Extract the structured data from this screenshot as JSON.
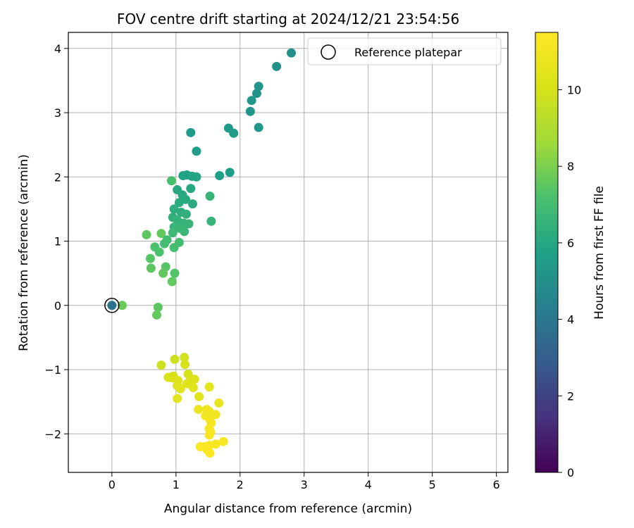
{
  "chart_data": {
    "type": "scatter",
    "title": "FOV centre drift starting at 2024/12/21 23:54:56",
    "xlabel": "Angular distance from reference (arcmin)",
    "ylabel": "Rotation from reference (arcmin)",
    "xlim": [
      -0.68,
      6.18
    ],
    "ylim": [
      -2.6,
      4.25
    ],
    "xticks": [
      0,
      1,
      2,
      3,
      4,
      5,
      6
    ],
    "yticks": [
      -2,
      -1,
      0,
      1,
      2,
      3,
      4
    ],
    "grid": true,
    "legend": {
      "placement": "top-right",
      "entries": [
        "Reference platepar"
      ]
    },
    "colorbar": {
      "label": "Hours from first FF file",
      "min": 0,
      "max": 11.5,
      "ticks": [
        0,
        2,
        4,
        6,
        8,
        10
      ],
      "colormap": "viridis"
    },
    "reference_point": {
      "x": 0,
      "y": 0
    },
    "points": [
      {
        "x": 0,
        "y": 0,
        "c": 3.8
      },
      {
        "x": 2.8,
        "y": 3.93,
        "c": 5.0
      },
      {
        "x": 2.57,
        "y": 3.72,
        "c": 5.1
      },
      {
        "x": 2.29,
        "y": 3.41,
        "c": 5.2
      },
      {
        "x": 2.26,
        "y": 3.3,
        "c": 5.2
      },
      {
        "x": 2.18,
        "y": 3.19,
        "c": 5.3
      },
      {
        "x": 2.16,
        "y": 3.02,
        "c": 5.3
      },
      {
        "x": 2.29,
        "y": 2.77,
        "c": 5.4
      },
      {
        "x": 1.82,
        "y": 2.76,
        "c": 5.4
      },
      {
        "x": 1.9,
        "y": 2.68,
        "c": 5.5
      },
      {
        "x": 1.23,
        "y": 2.69,
        "c": 5.5
      },
      {
        "x": 1.32,
        "y": 2.4,
        "c": 5.6
      },
      {
        "x": 1.84,
        "y": 2.07,
        "c": 5.6
      },
      {
        "x": 1.68,
        "y": 2.02,
        "c": 5.7
      },
      {
        "x": 1.11,
        "y": 2.02,
        "c": 5.8
      },
      {
        "x": 1.17,
        "y": 2.03,
        "c": 5.8
      },
      {
        "x": 1.25,
        "y": 2.01,
        "c": 5.9
      },
      {
        "x": 1.32,
        "y": 2.0,
        "c": 5.9
      },
      {
        "x": 0.93,
        "y": 1.94,
        "c": 7.1
      },
      {
        "x": 1.02,
        "y": 1.8,
        "c": 6.0
      },
      {
        "x": 1.23,
        "y": 1.82,
        "c": 6.0
      },
      {
        "x": 1.1,
        "y": 1.72,
        "c": 6.1
      },
      {
        "x": 1.53,
        "y": 1.7,
        "c": 6.6
      },
      {
        "x": 1.15,
        "y": 1.65,
        "c": 6.1
      },
      {
        "x": 1.05,
        "y": 1.6,
        "c": 6.2
      },
      {
        "x": 1.26,
        "y": 1.58,
        "c": 6.2
      },
      {
        "x": 0.97,
        "y": 1.5,
        "c": 6.3
      },
      {
        "x": 1.08,
        "y": 1.45,
        "c": 6.3
      },
      {
        "x": 1.16,
        "y": 1.42,
        "c": 6.4
      },
      {
        "x": 0.95,
        "y": 1.37,
        "c": 6.4
      },
      {
        "x": 1.02,
        "y": 1.33,
        "c": 6.5
      },
      {
        "x": 1.55,
        "y": 1.31,
        "c": 6.6
      },
      {
        "x": 1.12,
        "y": 1.28,
        "c": 6.5
      },
      {
        "x": 1.2,
        "y": 1.27,
        "c": 6.6
      },
      {
        "x": 0.97,
        "y": 1.22,
        "c": 6.6
      },
      {
        "x": 1.06,
        "y": 1.2,
        "c": 6.7
      },
      {
        "x": 1.13,
        "y": 1.15,
        "c": 6.7
      },
      {
        "x": 0.95,
        "y": 1.13,
        "c": 6.8
      },
      {
        "x": 0.77,
        "y": 1.12,
        "c": 7.6
      },
      {
        "x": 0.54,
        "y": 1.1,
        "c": 7.5
      },
      {
        "x": 0.86,
        "y": 1.02,
        "c": 6.9
      },
      {
        "x": 1.05,
        "y": 0.98,
        "c": 7.0
      },
      {
        "x": 0.82,
        "y": 0.96,
        "c": 7.0
      },
      {
        "x": 0.97,
        "y": 0.9,
        "c": 7.0
      },
      {
        "x": 0.67,
        "y": 0.91,
        "c": 7.2
      },
      {
        "x": 0.74,
        "y": 0.83,
        "c": 7.2
      },
      {
        "x": 0.6,
        "y": 0.73,
        "c": 7.4
      },
      {
        "x": 0.84,
        "y": 0.6,
        "c": 7.4
      },
      {
        "x": 0.61,
        "y": 0.58,
        "c": 7.5
      },
      {
        "x": 0.98,
        "y": 0.5,
        "c": 7.3
      },
      {
        "x": 0.8,
        "y": 0.5,
        "c": 7.6
      },
      {
        "x": 0.94,
        "y": 0.37,
        "c": 7.6
      },
      {
        "x": 0.16,
        "y": 0.0,
        "c": 7.7
      },
      {
        "x": 0.72,
        "y": -0.03,
        "c": 7.5
      },
      {
        "x": 0.7,
        "y": -0.15,
        "c": 7.6
      },
      {
        "x": 1.13,
        "y": -0.81,
        "c": 9.9
      },
      {
        "x": 0.98,
        "y": -0.84,
        "c": 9.8
      },
      {
        "x": 0.77,
        "y": -0.93,
        "c": 9.8
      },
      {
        "x": 1.14,
        "y": -0.92,
        "c": 10.0
      },
      {
        "x": 1.19,
        "y": -1.07,
        "c": 10.0
      },
      {
        "x": 0.96,
        "y": -1.1,
        "c": 10.0
      },
      {
        "x": 0.88,
        "y": -1.12,
        "c": 10.1
      },
      {
        "x": 0.95,
        "y": -1.13,
        "c": 10.1
      },
      {
        "x": 1.23,
        "y": -1.15,
        "c": 10.2
      },
      {
        "x": 1.29,
        "y": -1.15,
        "c": 10.2
      },
      {
        "x": 1.03,
        "y": -1.17,
        "c": 10.2
      },
      {
        "x": 1.17,
        "y": -1.22,
        "c": 10.3
      },
      {
        "x": 1.02,
        "y": -1.25,
        "c": 10.3
      },
      {
        "x": 1.52,
        "y": -1.27,
        "c": 10.6
      },
      {
        "x": 1.27,
        "y": -1.28,
        "c": 10.3
      },
      {
        "x": 1.07,
        "y": -1.3,
        "c": 10.4
      },
      {
        "x": 1.36,
        "y": -1.42,
        "c": 10.4
      },
      {
        "x": 1.02,
        "y": -1.45,
        "c": 10.5
      },
      {
        "x": 1.67,
        "y": -1.52,
        "c": 10.7
      },
      {
        "x": 1.35,
        "y": -1.62,
        "c": 10.8
      },
      {
        "x": 1.48,
        "y": -1.62,
        "c": 10.9
      },
      {
        "x": 1.52,
        "y": -1.65,
        "c": 11.0
      },
      {
        "x": 1.62,
        "y": -1.7,
        "c": 11.0
      },
      {
        "x": 1.46,
        "y": -1.72,
        "c": 11.1
      },
      {
        "x": 1.53,
        "y": -1.78,
        "c": 11.1
      },
      {
        "x": 1.55,
        "y": -1.83,
        "c": 11.2
      },
      {
        "x": 1.52,
        "y": -1.92,
        "c": 11.2
      },
      {
        "x": 1.54,
        "y": -1.97,
        "c": 11.2
      },
      {
        "x": 1.52,
        "y": -2.02,
        "c": 11.3
      },
      {
        "x": 1.74,
        "y": -2.12,
        "c": 11.3
      },
      {
        "x": 1.62,
        "y": -2.16,
        "c": 11.3
      },
      {
        "x": 1.52,
        "y": -2.18,
        "c": 11.4
      },
      {
        "x": 1.38,
        "y": -2.2,
        "c": 11.4
      },
      {
        "x": 1.45,
        "y": -2.2,
        "c": 11.4
      },
      {
        "x": 1.48,
        "y": -2.24,
        "c": 11.4
      },
      {
        "x": 1.53,
        "y": -2.3,
        "c": 11.5
      }
    ]
  }
}
